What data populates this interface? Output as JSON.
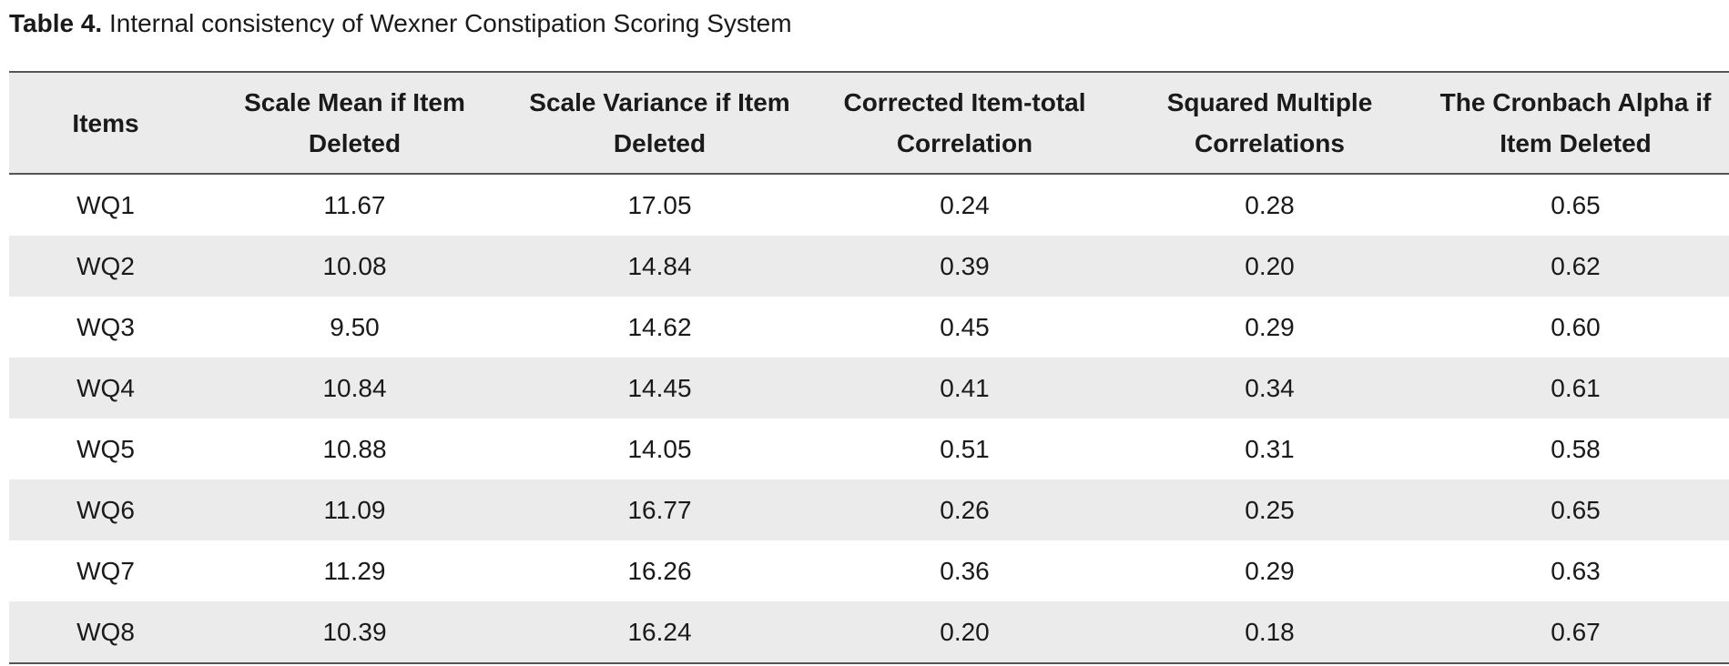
{
  "caption": {
    "label": "Table 4.",
    "text": " Internal consistency of Wexner Constipation Scoring System"
  },
  "table": {
    "headers": [
      "Items",
      "Scale Mean if Item Deleted",
      "Scale Variance if Item Deleted",
      "Corrected Item-total Correlation",
      "Squared Multiple Correlations",
      "The Cronbach Alpha if Item Deleted"
    ],
    "rows": [
      [
        "WQ1",
        "11.67",
        "17.05",
        "0.24",
        "0.28",
        "0.65"
      ],
      [
        "WQ2",
        "10.08",
        "14.84",
        "0.39",
        "0.20",
        "0.62"
      ],
      [
        "WQ3",
        "9.50",
        "14.62",
        "0.45",
        "0.29",
        "0.60"
      ],
      [
        "WQ4",
        "10.84",
        "14.45",
        "0.41",
        "0.34",
        "0.61"
      ],
      [
        "WQ5",
        "10.88",
        "14.05",
        "0.51",
        "0.31",
        "0.58"
      ],
      [
        "WQ6",
        "11.09",
        "16.77",
        "0.26",
        "0.25",
        "0.65"
      ],
      [
        "WQ7",
        "11.29",
        "16.26",
        "0.36",
        "0.29",
        "0.63"
      ],
      [
        "WQ8",
        "10.39",
        "16.24",
        "0.20",
        "0.18",
        "0.67"
      ]
    ]
  }
}
